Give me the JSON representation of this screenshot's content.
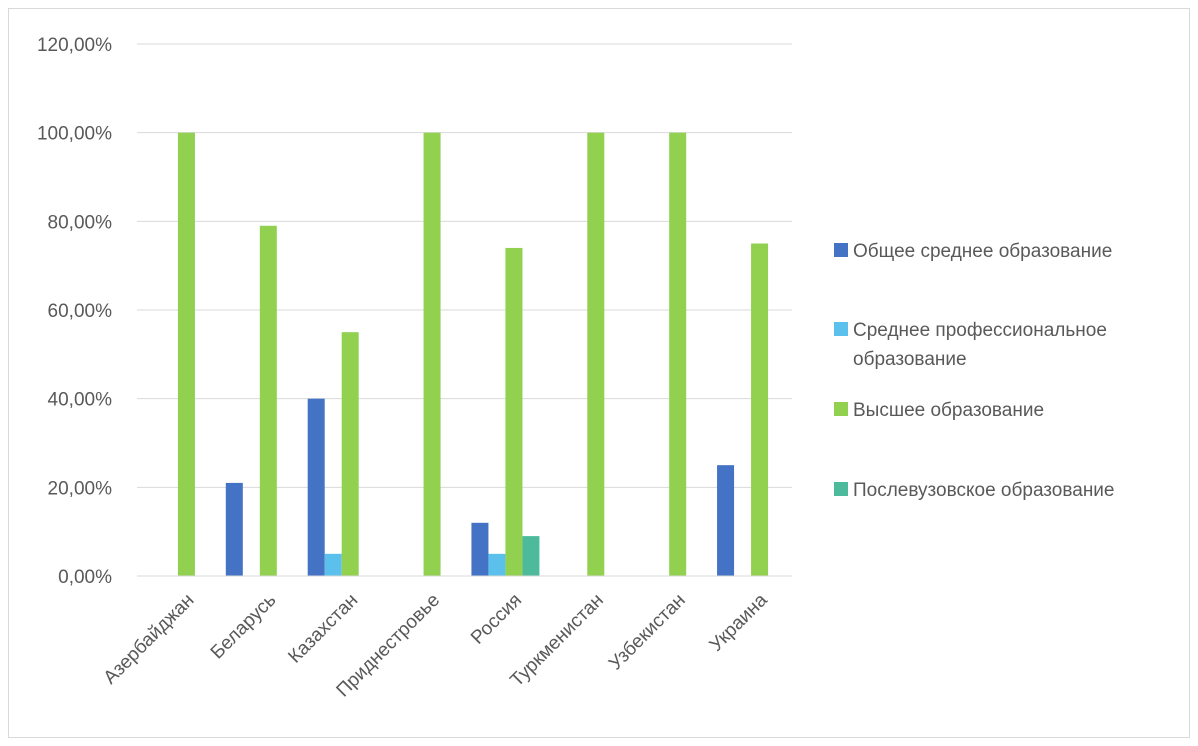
{
  "chart_data": {
    "type": "bar",
    "title": "",
    "xlabel": "",
    "ylabel": "",
    "ylim": [
      0,
      1.2
    ],
    "y_ticks": [
      "0,00%",
      "20,00%",
      "40,00%",
      "60,00%",
      "80,00%",
      "100,00%",
      "120,00%"
    ],
    "grid": true,
    "legend_position": "right",
    "categories": [
      "Азербайджан",
      "Беларусь",
      "Казахстан",
      "Приднестровье",
      "Россия",
      "Туркменистан",
      "Узбекистан",
      "Украина"
    ],
    "series": [
      {
        "name": "Общее среднее образование",
        "color": "#4472C4",
        "values": [
          0,
          0.21,
          0.4,
          0,
          0.12,
          0,
          0,
          0.25
        ]
      },
      {
        "name": "Среднее профессиональное образование",
        "color": "#5BC0EB",
        "values": [
          0,
          0,
          0.05,
          0,
          0.05,
          0,
          0,
          0
        ]
      },
      {
        "name": "Высшее образование",
        "color": "#92D050",
        "values": [
          1.0,
          0.79,
          0.55,
          1.0,
          0.74,
          1.0,
          1.0,
          0.75
        ]
      },
      {
        "name": "Послевузовское образование",
        "color": "#4DBB9B",
        "values": [
          0,
          0,
          0,
          0,
          0.09,
          0,
          0,
          0
        ]
      }
    ]
  }
}
